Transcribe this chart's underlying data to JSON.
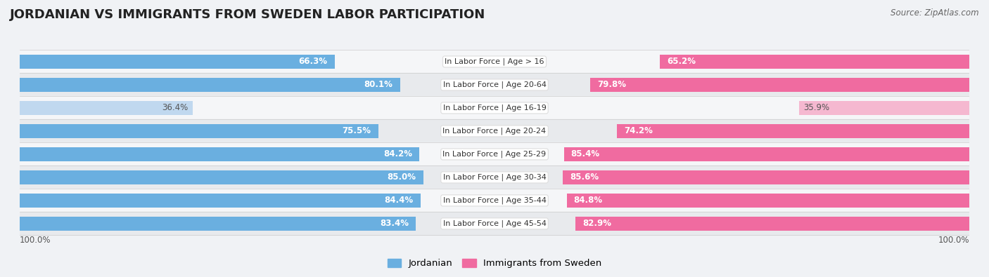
{
  "title": "JORDANIAN VS IMMIGRANTS FROM SWEDEN LABOR PARTICIPATION",
  "source": "Source: ZipAtlas.com",
  "categories": [
    "In Labor Force | Age > 16",
    "In Labor Force | Age 20-64",
    "In Labor Force | Age 16-19",
    "In Labor Force | Age 20-24",
    "In Labor Force | Age 25-29",
    "In Labor Force | Age 30-34",
    "In Labor Force | Age 35-44",
    "In Labor Force | Age 45-54"
  ],
  "jordanian": [
    66.3,
    80.1,
    36.4,
    75.5,
    84.2,
    85.0,
    84.4,
    83.4
  ],
  "immigrants": [
    65.2,
    79.8,
    35.9,
    74.2,
    85.4,
    85.6,
    84.8,
    82.9
  ],
  "jordanian_color": "#6aafe0",
  "jordanian_color_light": "#c0d8ef",
  "immigrants_color": "#f06ba0",
  "immigrants_color_light": "#f5b8d0",
  "bg_color": "#f0f2f5",
  "row_color_even": "#f5f6f8",
  "row_color_odd": "#e8eaed",
  "legend_jordanian": "Jordanian",
  "legend_immigrants": "Immigrants from Sweden",
  "bottom_label": "100.0%",
  "max_val": 100.0,
  "title_fontsize": 13,
  "label_fontsize": 8.5,
  "cat_fontsize": 8,
  "bar_height": 0.62
}
